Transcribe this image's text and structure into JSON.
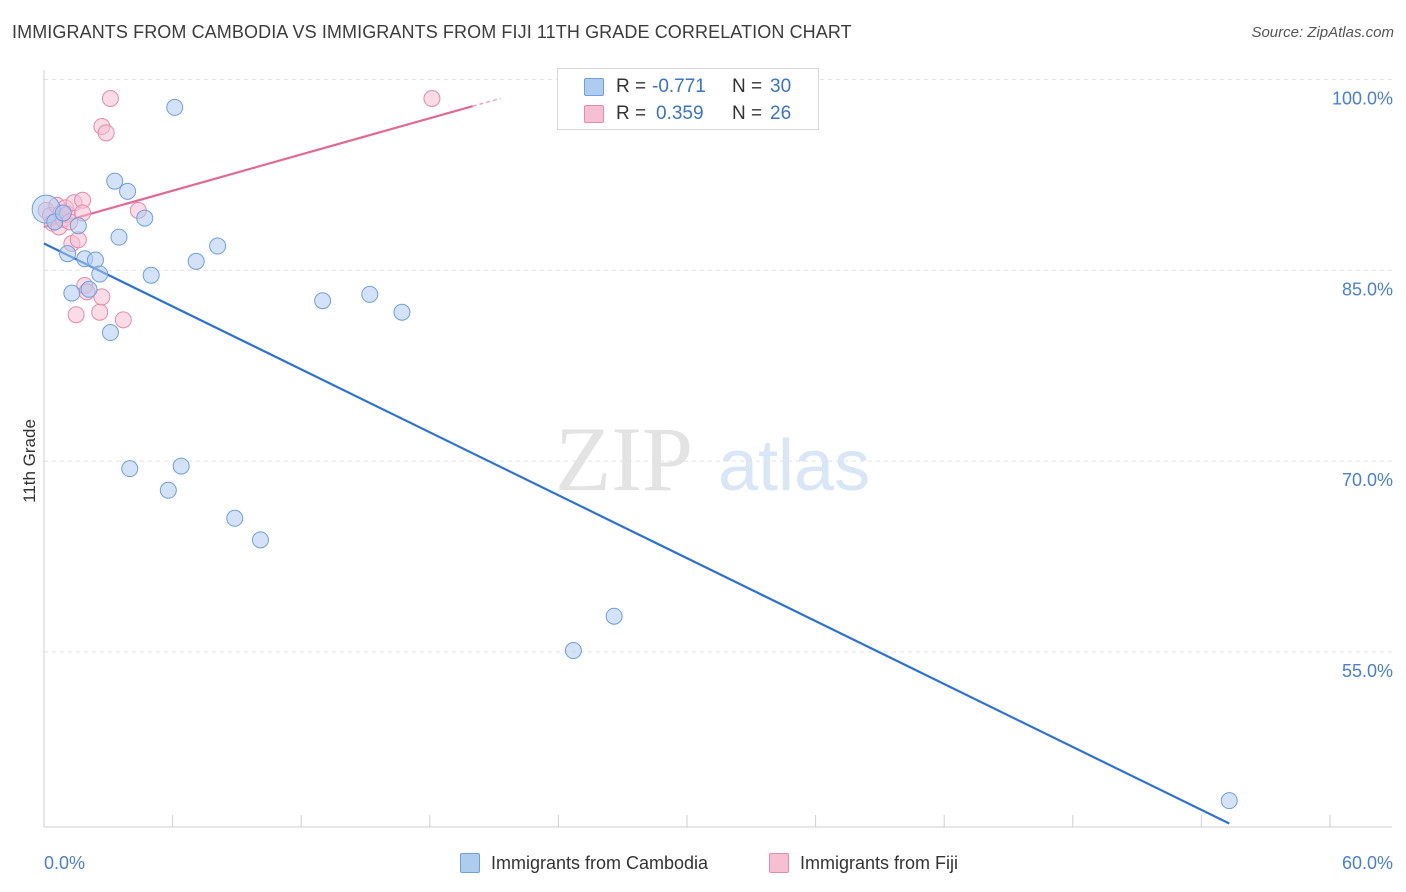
{
  "header": {
    "title": "IMMIGRANTS FROM CAMBODIA VS IMMIGRANTS FROM FIJI 11TH GRADE CORRELATION CHART",
    "source": "Source: ZipAtlas.com"
  },
  "watermark": {
    "zip": "ZIP",
    "atlas": "atlas"
  },
  "legend": {
    "series": [
      {
        "r_label": "R =",
        "r_value": "-0.771",
        "n_label": "N =",
        "n_value": "30"
      },
      {
        "r_label": "R =",
        "r_value": "0.359",
        "n_label": "N =",
        "n_value": "26"
      }
    ]
  },
  "bottom_legend": {
    "cambodia": "Immigrants from Cambodia",
    "fiji": "Immigrants from Fiji"
  },
  "chart_data": {
    "type": "scatter",
    "title": "IMMIGRANTS FROM CAMBODIA VS IMMIGRANTS FROM FIJI 11TH GRADE CORRELATION CHART",
    "xlabel": "",
    "ylabel": "11th Grade",
    "xlim": [
      0,
      60
    ],
    "ylim": [
      43,
      101.5
    ],
    "x_tick_labels": [
      {
        "value": 0,
        "label": "0.0%"
      },
      {
        "value": 60,
        "label": "60.0%"
      }
    ],
    "x_minor_ticks": [
      0,
      6,
      12,
      18,
      24,
      30,
      36,
      42,
      48,
      54,
      60
    ],
    "y_ticks": [
      {
        "value": 100,
        "label": "100.0%"
      },
      {
        "value": 85,
        "label": "85.0%"
      },
      {
        "value": 70,
        "label": "70.0%"
      },
      {
        "value": 55,
        "label": "55.0%"
      }
    ],
    "grid": true,
    "colors": {
      "cambodia_fill": "#aecbf0",
      "cambodia_stroke": "#6f9fdc",
      "cambodia_line": "#2d72d2",
      "fiji_fill": "#f7bfd2",
      "fiji_stroke": "#e58aa9",
      "fiji_line": "#e06b92",
      "grid": "#e2e2e2",
      "axis": "#cfcfcf"
    },
    "series": [
      {
        "name": "Immigrants from Cambodia",
        "points": [
          [
            0.1,
            91.3
          ],
          [
            0.5,
            90.3
          ],
          [
            0.9,
            91.0
          ],
          [
            1.1,
            87.8
          ],
          [
            1.3,
            84.7
          ],
          [
            1.6,
            90.0
          ],
          [
            1.9,
            87.4
          ],
          [
            2.1,
            85.0
          ],
          [
            2.4,
            87.3
          ],
          [
            2.6,
            86.2
          ],
          [
            3.1,
            81.6
          ],
          [
            3.3,
            93.5
          ],
          [
            3.5,
            89.1
          ],
          [
            3.9,
            92.7
          ],
          [
            4.0,
            70.9
          ],
          [
            4.7,
            90.6
          ],
          [
            5.0,
            86.1
          ],
          [
            5.8,
            69.2
          ],
          [
            6.1,
            99.3
          ],
          [
            6.4,
            71.1
          ],
          [
            7.1,
            87.2
          ],
          [
            8.1,
            88.4
          ],
          [
            8.9,
            67.0
          ],
          [
            10.1,
            65.3
          ],
          [
            13.0,
            84.1
          ],
          [
            15.2,
            84.6
          ],
          [
            16.7,
            83.2
          ],
          [
            24.7,
            56.6
          ],
          [
            26.6,
            59.3
          ],
          [
            55.3,
            44.8
          ]
        ],
        "trend": {
          "x": [
            0,
            55.3
          ],
          "y": [
            88.6,
            43.0
          ]
        }
      },
      {
        "name": "Immigrants from Fiji",
        "points": [
          [
            0.1,
            91.2
          ],
          [
            0.3,
            90.8
          ],
          [
            0.4,
            90.2
          ],
          [
            0.6,
            91.6
          ],
          [
            0.7,
            89.9
          ],
          [
            0.8,
            91.0
          ],
          [
            0.9,
            90.5
          ],
          [
            1.0,
            91.4
          ],
          [
            1.1,
            90.9
          ],
          [
            1.2,
            90.3
          ],
          [
            1.3,
            88.6
          ],
          [
            1.4,
            91.8
          ],
          [
            1.5,
            83.0
          ],
          [
            1.6,
            88.9
          ],
          [
            1.8,
            92.0
          ],
          [
            1.8,
            91.0
          ],
          [
            1.9,
            85.3
          ],
          [
            2.0,
            84.8
          ],
          [
            2.6,
            83.2
          ],
          [
            2.7,
            84.4
          ],
          [
            2.7,
            97.8
          ],
          [
            2.9,
            97.3
          ],
          [
            3.1,
            100.0
          ],
          [
            3.7,
            82.6
          ],
          [
            4.4,
            91.2
          ],
          [
            18.1,
            100.0
          ]
        ],
        "trend": {
          "x": [
            0,
            20.0
          ],
          "y": [
            89.9,
            99.4
          ]
        },
        "trend_dashed": {
          "x": [
            20.0,
            21.3
          ],
          "y": [
            99.4,
            100.0
          ]
        }
      }
    ]
  }
}
